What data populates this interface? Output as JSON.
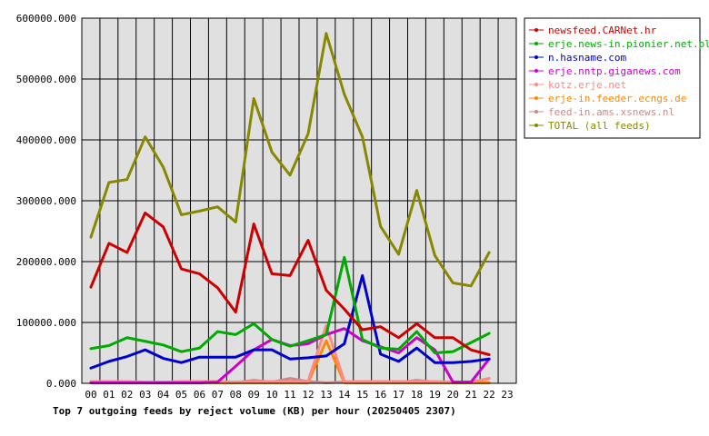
{
  "chart_data": {
    "type": "line",
    "title": "Top 7 outgoing feeds by reject volume (KB) per hour (20250405 2307)",
    "xlabel": "",
    "ylabel": "",
    "categories": [
      "00",
      "01",
      "02",
      "03",
      "04",
      "05",
      "06",
      "07",
      "08",
      "09",
      "10",
      "11",
      "12",
      "13",
      "14",
      "15",
      "16",
      "17",
      "18",
      "19",
      "20",
      "21",
      "22",
      "23"
    ],
    "ylim": [
      0,
      600000
    ],
    "yticks": [
      "0.000",
      "100000.000",
      "200000.000",
      "300000.000",
      "400000.000",
      "500000.000",
      "600000.000"
    ],
    "ytick_values": [
      0,
      100000,
      200000,
      300000,
      400000,
      500000,
      600000
    ],
    "grid": true,
    "legend_position": "top-right",
    "plot_background": "#e0e0e0",
    "series": [
      {
        "name": "newsfeed.CARNet.hr",
        "color": "#cc0000",
        "values": [
          158000,
          230000,
          215000,
          280000,
          257000,
          188000,
          180000,
          157000,
          117000,
          262000,
          180000,
          177000,
          235000,
          153000,
          122000,
          88000,
          93000,
          75000,
          98000,
          75000,
          75000,
          55000,
          47000,
          null
        ]
      },
      {
        "name": "erje.news-in.pionier.net.pl",
        "color": "#00aa00",
        "values": [
          57000,
          62000,
          75000,
          69000,
          63000,
          52000,
          58000,
          85000,
          80000,
          98000,
          72000,
          61000,
          70000,
          80000,
          207000,
          72000,
          58000,
          56000,
          85000,
          50000,
          52000,
          67000,
          82000,
          null
        ]
      },
      {
        "name": "n.hasname.com",
        "color": "#0000cc",
        "values": [
          25000,
          36000,
          44000,
          55000,
          41000,
          34000,
          43000,
          43000,
          43000,
          55000,
          55000,
          40000,
          42000,
          45000,
          65000,
          177000,
          48000,
          36000,
          58000,
          34000,
          34000,
          36000,
          40000,
          null
        ]
      },
      {
        "name": "erje.nntp.giganews.com",
        "color": "#cc00cc",
        "values": [
          1000,
          1000,
          1000,
          1000,
          1000,
          1000,
          1000,
          2000,
          28000,
          55000,
          72000,
          62000,
          65000,
          80000,
          90000,
          70000,
          60000,
          50000,
          75000,
          55000,
          2000,
          2000,
          40000,
          null
        ]
      },
      {
        "name": "kotz.erje.net",
        "color": "#ff8888",
        "values": [
          3000,
          3000,
          3000,
          2000,
          2000,
          3000,
          3000,
          3000,
          2000,
          3000,
          3000,
          3000,
          3000,
          95000,
          3000,
          3000,
          3000,
          3000,
          3000,
          3000,
          2000,
          2000,
          8000,
          null
        ]
      },
      {
        "name": "erje-in.feeder.ecngs.de",
        "color": "#ff8800",
        "values": [
          1000,
          1000,
          1000,
          1000,
          1000,
          1000,
          1000,
          1000,
          1000,
          1000,
          1000,
          1000,
          1000,
          70000,
          1000,
          1000,
          1000,
          1000,
          1000,
          1000,
          1000,
          1000,
          1000,
          null
        ]
      },
      {
        "name": "feed-in.ams.xsnews.nl",
        "color": "#cc8888",
        "values": [
          2000,
          2000,
          2000,
          1000,
          1000,
          2000,
          2000,
          2000,
          1000,
          5000,
          2000,
          8000,
          3000,
          1000,
          2000,
          1000,
          2000,
          1000,
          5000,
          2000,
          1000,
          1000,
          8000,
          null
        ]
      },
      {
        "name": "TOTAL (all feeds)",
        "color": "#888800",
        "values": [
          240000,
          330000,
          335000,
          405000,
          355000,
          277000,
          283000,
          290000,
          265000,
          468000,
          380000,
          342000,
          410000,
          575000,
          475000,
          405000,
          258000,
          212000,
          317000,
          210000,
          165000,
          160000,
          215000,
          null
        ]
      }
    ]
  }
}
